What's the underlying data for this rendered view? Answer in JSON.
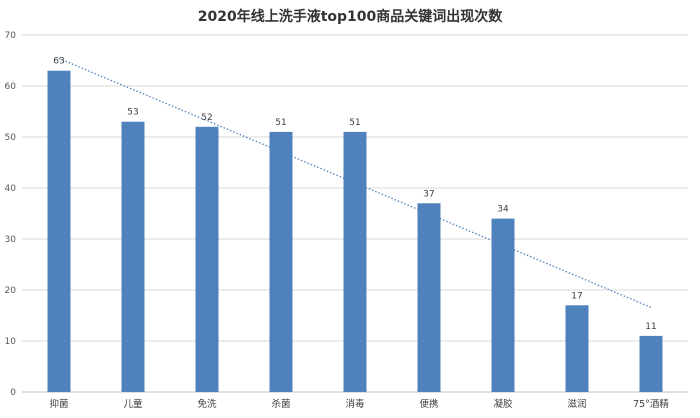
{
  "chart_data": {
    "type": "bar",
    "title": "2020年线上洗手液top100商品关键词出现次数",
    "categories": [
      "抑菌",
      "儿童",
      "免洗",
      "杀菌",
      "消毒",
      "便携",
      "凝胶",
      "滋润",
      "75°酒精"
    ],
    "values": [
      63,
      53,
      52,
      51,
      51,
      37,
      34,
      17,
      11
    ],
    "ylim": [
      0,
      70
    ],
    "yticks": [
      0,
      10,
      20,
      30,
      40,
      50,
      60,
      70
    ],
    "xlabel": "",
    "ylabel": "",
    "grid": true,
    "legend": "none",
    "data_labels": true,
    "trendline": "linear",
    "colors": {
      "bar": "#4f81bd",
      "trendline": "#4f81bd",
      "grid": "#d9d9d9",
      "axis": "#bfbfbf"
    }
  }
}
